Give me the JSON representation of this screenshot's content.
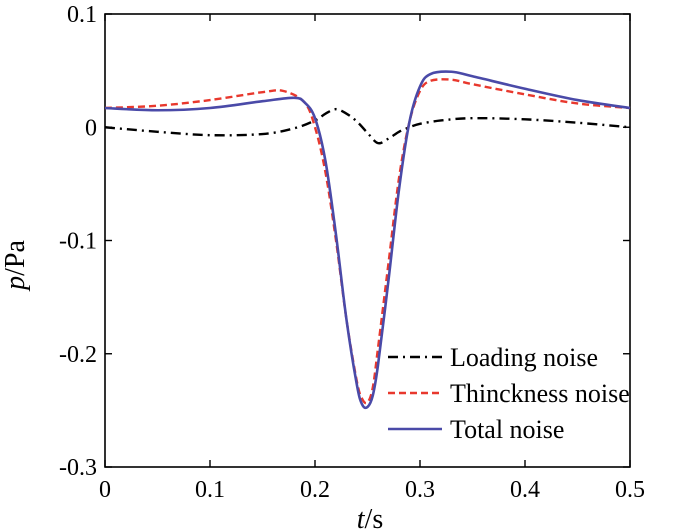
{
  "chart_data": {
    "type": "line",
    "xlabel": {
      "var": "t",
      "unit": "/s"
    },
    "ylabel": {
      "var": "p",
      "unit": "/Pa"
    },
    "xlim": [
      0,
      0.5
    ],
    "ylim": [
      -0.3,
      0.1
    ],
    "xticks": [
      0,
      0.1,
      0.2,
      0.3,
      0.4,
      0.5
    ],
    "xtick_labels": [
      "0",
      "0.1",
      "0.2",
      "0.3",
      "0.4",
      "0.5"
    ],
    "yticks": [
      -0.3,
      -0.2,
      -0.1,
      0,
      0.1
    ],
    "ytick_labels": [
      "-0.3",
      "-0.2",
      "-0.1",
      "0",
      "0.1"
    ],
    "grid": false,
    "legend_position": "bottom-right",
    "series": [
      {
        "name": "Loading noise",
        "color": "#000000",
        "dash": "dashdot",
        "x": [
          0,
          0.05,
          0.1,
          0.15,
          0.18,
          0.2,
          0.21,
          0.22,
          0.23,
          0.24,
          0.25,
          0.26,
          0.27,
          0.28,
          0.29,
          0.3,
          0.32,
          0.35,
          0.4,
          0.45,
          0.5
        ],
        "y": [
          0,
          -0.004,
          -0.007,
          -0.006,
          -0.001,
          0.006,
          0.012,
          0.016,
          0.012,
          0.005,
          -0.005,
          -0.014,
          -0.01,
          -0.004,
          0.0,
          0.003,
          0.006,
          0.008,
          0.007,
          0.004,
          0.0
        ]
      },
      {
        "name": "Thinckness noise",
        "color": "#e8382d",
        "dash": "dashed",
        "x": [
          0,
          0.05,
          0.1,
          0.15,
          0.17,
          0.19,
          0.2,
          0.21,
          0.22,
          0.23,
          0.24,
          0.245,
          0.25,
          0.255,
          0.26,
          0.27,
          0.28,
          0.29,
          0.3,
          0.31,
          0.33,
          0.35,
          0.4,
          0.45,
          0.5
        ],
        "y": [
          0.017,
          0.019,
          0.024,
          0.031,
          0.032,
          0.022,
          0.0,
          -0.04,
          -0.1,
          -0.17,
          -0.225,
          -0.24,
          -0.243,
          -0.23,
          -0.195,
          -0.12,
          -0.045,
          0.005,
          0.032,
          0.041,
          0.042,
          0.038,
          0.029,
          0.021,
          0.017
        ]
      },
      {
        "name": "Total noise",
        "color": "#4a4aa8",
        "dash": "solid",
        "x": [
          0,
          0.05,
          0.1,
          0.15,
          0.18,
          0.19,
          0.2,
          0.21,
          0.22,
          0.23,
          0.24,
          0.245,
          0.25,
          0.255,
          0.26,
          0.27,
          0.28,
          0.29,
          0.3,
          0.31,
          0.33,
          0.35,
          0.4,
          0.45,
          0.5
        ],
        "y": [
          0.017,
          0.015,
          0.017,
          0.023,
          0.026,
          0.022,
          0.008,
          -0.03,
          -0.095,
          -0.17,
          -0.228,
          -0.245,
          -0.247,
          -0.237,
          -0.21,
          -0.135,
          -0.055,
          0.005,
          0.036,
          0.047,
          0.049,
          0.045,
          0.034,
          0.024,
          0.017
        ]
      }
    ]
  }
}
